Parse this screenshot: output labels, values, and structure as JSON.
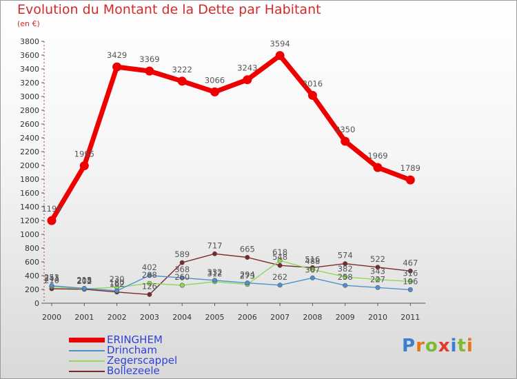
{
  "title": "Evolution du Montant de la Dette par Habitant",
  "subtitle": "(en €)",
  "logo": "Proxiti",
  "chart_data": {
    "type": "line",
    "title": "Evolution du Montant de la Dette par Habitant",
    "subtitle": "(en €)",
    "categories": [
      "2000",
      "2001",
      "2002",
      "2003",
      "2004",
      "2005",
      "2006",
      "2007",
      "2008",
      "2009",
      "2010",
      "2011"
    ],
    "ylim": [
      0,
      3800
    ],
    "yticks": [
      0,
      200,
      400,
      600,
      800,
      1000,
      1200,
      1400,
      1600,
      1800,
      2000,
      2200,
      2400,
      2600,
      2800,
      3000,
      3200,
      3400,
      3600,
      3800
    ],
    "grid": false,
    "legend_position": "bottom-left",
    "series": [
      {
        "name": "ERINGHEM",
        "color": "#ee0000",
        "values": [
          1199,
          1995,
          3429,
          3369,
          3222,
          3066,
          3243,
          3594,
          3016,
          2350,
          1969,
          1789
        ]
      },
      {
        "name": "Drincham",
        "color": "#4f8fce",
        "values": [
          253,
          215,
          180,
          402,
          368,
          332,
          294,
          262,
          367,
          258,
          227,
          196
        ]
      },
      {
        "name": "Zegerscappel",
        "color": "#8ed85a",
        "values": [
          241,
          208,
          230,
          288,
          260,
          312,
          273,
          618,
          488,
          382,
          343,
          316
        ]
      },
      {
        "name": "Bollezeele",
        "color": "#7a2929",
        "values": [
          210,
          202,
          162,
          126,
          589,
          717,
          665,
          548,
          516,
          574,
          522,
          467
        ]
      }
    ]
  }
}
